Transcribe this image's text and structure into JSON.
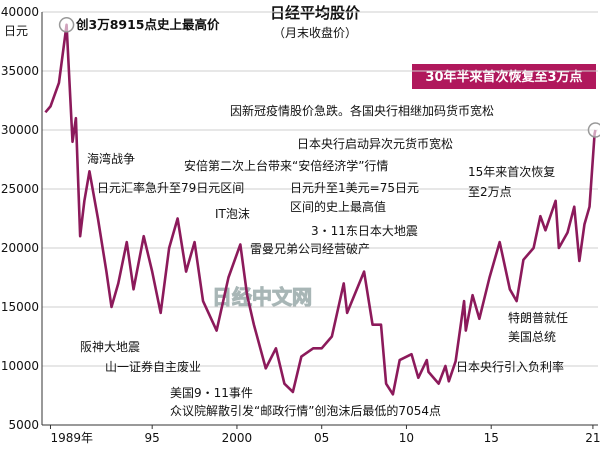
{
  "chart_data": {
    "type": "line",
    "title": "日经平均股价",
    "subtitle": "（月末收盘价）",
    "y_unit": "日元",
    "watermark": "日经中文网",
    "highlight": "30年半来首次恢复至3万点",
    "annotations": [
      "创3万8915点史上最高价",
      "因新冠疫情股价急跌。各国央行相继加码货币宽松",
      "日本央行启动异次元货币宽松",
      "海湾战争",
      "安倍第二次上台带来“安倍经济学”行情",
      "日元汇率急升至79日元区间",
      "日元升至1美元=75日元",
      "区间的史上最高值",
      "15年来首次恢复",
      "至2万点",
      "IT泡沫",
      "3・11东日本大地震",
      "雷曼兄弟公司经营破产",
      "特朗普就任",
      "美国总统",
      "阪神大地震",
      "日本央行引入负利率",
      "山一证券自主废业",
      "美国9・11事件",
      "众议院解散引发“邮政行情”创泡沫后最低的7054点"
    ],
    "xlim": [
      1988.5,
      2021.3
    ],
    "ylim": [
      5000,
      40000
    ],
    "xticks": [
      {
        "value": 1989,
        "label": "1989年"
      },
      {
        "value": 1995,
        "label": "95"
      },
      2000,
      {
        "value": 2005,
        "label": "05"
      },
      {
        "value": 2010,
        "label": "10"
      },
      {
        "value": 2015,
        "label": "15"
      },
      {
        "value": 2021,
        "label": "21"
      }
    ],
    "yticks": [
      5000,
      10000,
      15000,
      20000,
      25000,
      30000,
      35000,
      40000
    ],
    "grid": true,
    "series": [
      {
        "color": "#8c1a5b",
        "x": [
          1988.7,
          1989.0,
          1989.5,
          1989.95,
          1990.3,
          1990.5,
          1990.75,
          1991.0,
          1991.3,
          1991.8,
          1992.3,
          1992.6,
          1993.0,
          1993.5,
          1993.9,
          1994.5,
          1995.0,
          1995.5,
          1996.0,
          1996.5,
          1997.0,
          1997.5,
          1998.0,
          1998.8,
          1999.5,
          2000.2,
          2000.6,
          2001.0,
          2001.7,
          2002.3,
          2002.8,
          2003.3,
          2003.8,
          2004.5,
          2005.0,
          2005.6,
          2006.3,
          2006.5,
          2007.5,
          2008.0,
          2008.5,
          2008.8,
          2009.2,
          2009.6,
          2010.3,
          2010.7,
          2011.2,
          2011.3,
          2011.9,
          2012.3,
          2012.5,
          2012.9,
          2013.4,
          2013.5,
          2013.9,
          2014.3,
          2014.9,
          2015.5,
          2016.1,
          2016.5,
          2016.9,
          2017.5,
          2017.9,
          2018.2,
          2018.8,
          2018.99,
          2019.5,
          2019.9,
          2020.2,
          2020.5,
          2020.8,
          2021.1,
          2021.15
        ],
        "values": [
          31500,
          32000,
          34000,
          38915,
          29000,
          31000,
          21000,
          24000,
          26500,
          22500,
          18000,
          15000,
          17000,
          20500,
          16500,
          21000,
          18000,
          14500,
          20000,
          22500,
          18000,
          20500,
          15500,
          13000,
          17500,
          20300,
          16000,
          13500,
          9800,
          11500,
          8500,
          7800,
          10800,
          11500,
          11500,
          12500,
          17000,
          14500,
          18000,
          13500,
          13500,
          8500,
          7600,
          10500,
          11000,
          9000,
          10500,
          9500,
          8500,
          10000,
          8700,
          10400,
          15500,
          13000,
          16000,
          14000,
          17500,
          20500,
          16500,
          15500,
          19000,
          20000,
          22700,
          21500,
          24000,
          20000,
          21300,
          23500,
          18900,
          22000,
          23500,
          29700,
          30000
        ]
      }
    ]
  }
}
